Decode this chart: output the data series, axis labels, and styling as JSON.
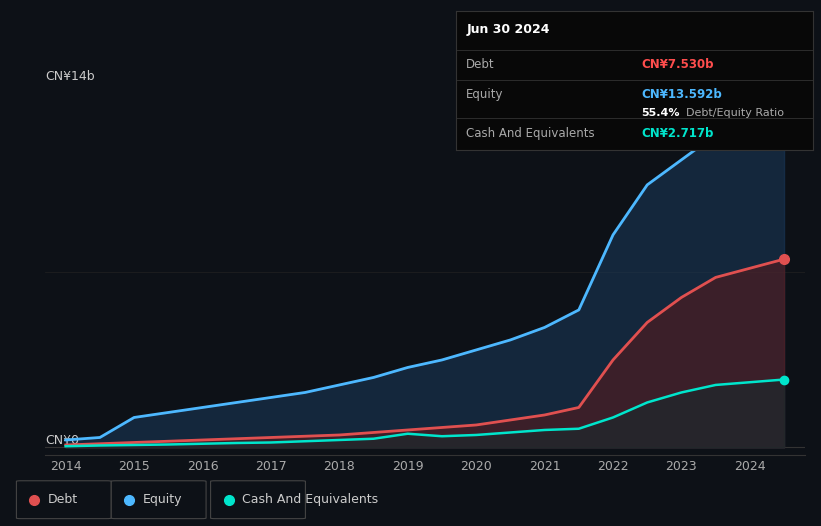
{
  "background_color": "#0d1117",
  "chart_bg_color": "#0d1117",
  "title_box": {
    "date": "Jun 30 2024",
    "debt_label": "Debt",
    "debt_value": "CN¥7.530b",
    "debt_color": "#ff4d4d",
    "equity_label": "Equity",
    "equity_value": "CN¥13.592b",
    "equity_color": "#4db8ff",
    "ratio_bold": "55.4%",
    "ratio_text": "Debt/Equity Ratio",
    "cash_label": "Cash And Equivalents",
    "cash_value": "CN¥2.717b",
    "cash_color": "#00e5cc",
    "box_bg": "#080808",
    "box_border": "#333333",
    "text_color": "#aaaaaa"
  },
  "y_label_top": "CN¥14b",
  "y_label_bottom": "CN¥0",
  "x_ticks": [
    "2014",
    "2015",
    "2016",
    "2017",
    "2018",
    "2019",
    "2020",
    "2021",
    "2022",
    "2023",
    "2024"
  ],
  "y_max": 14.0,
  "equity_color": "#4db8ff",
  "debt_color": "#e05050",
  "cash_color": "#00e5cc",
  "equity_fill": "#1a3a5c",
  "debt_fill": "#5c1a1a",
  "cash_fill": "#0d2e2e",
  "legend_items": [
    {
      "label": "Debt",
      "color": "#e05050"
    },
    {
      "label": "Equity",
      "color": "#4db8ff"
    },
    {
      "label": "Cash And Equivalents",
      "color": "#00e5cc"
    }
  ],
  "years": [
    2014.0,
    2014.5,
    2015.0,
    2015.5,
    2016.0,
    2016.5,
    2017.0,
    2017.5,
    2018.0,
    2018.5,
    2019.0,
    2019.5,
    2020.0,
    2020.5,
    2021.0,
    2021.5,
    2022.0,
    2022.5,
    2023.0,
    2023.5,
    2024.5
  ],
  "equity": [
    0.3,
    0.4,
    1.2,
    1.4,
    1.6,
    1.8,
    2.0,
    2.2,
    2.5,
    2.8,
    3.2,
    3.5,
    3.9,
    4.3,
    4.8,
    5.5,
    8.5,
    10.5,
    11.5,
    12.5,
    13.592
  ],
  "debt": [
    0.1,
    0.15,
    0.2,
    0.25,
    0.3,
    0.35,
    0.4,
    0.45,
    0.5,
    0.6,
    0.7,
    0.8,
    0.9,
    1.1,
    1.3,
    1.6,
    3.5,
    5.0,
    6.0,
    6.8,
    7.53
  ],
  "cash": [
    0.05,
    0.08,
    0.1,
    0.12,
    0.15,
    0.18,
    0.2,
    0.25,
    0.3,
    0.35,
    0.55,
    0.45,
    0.5,
    0.6,
    0.7,
    0.75,
    1.2,
    1.8,
    2.2,
    2.5,
    2.717
  ]
}
